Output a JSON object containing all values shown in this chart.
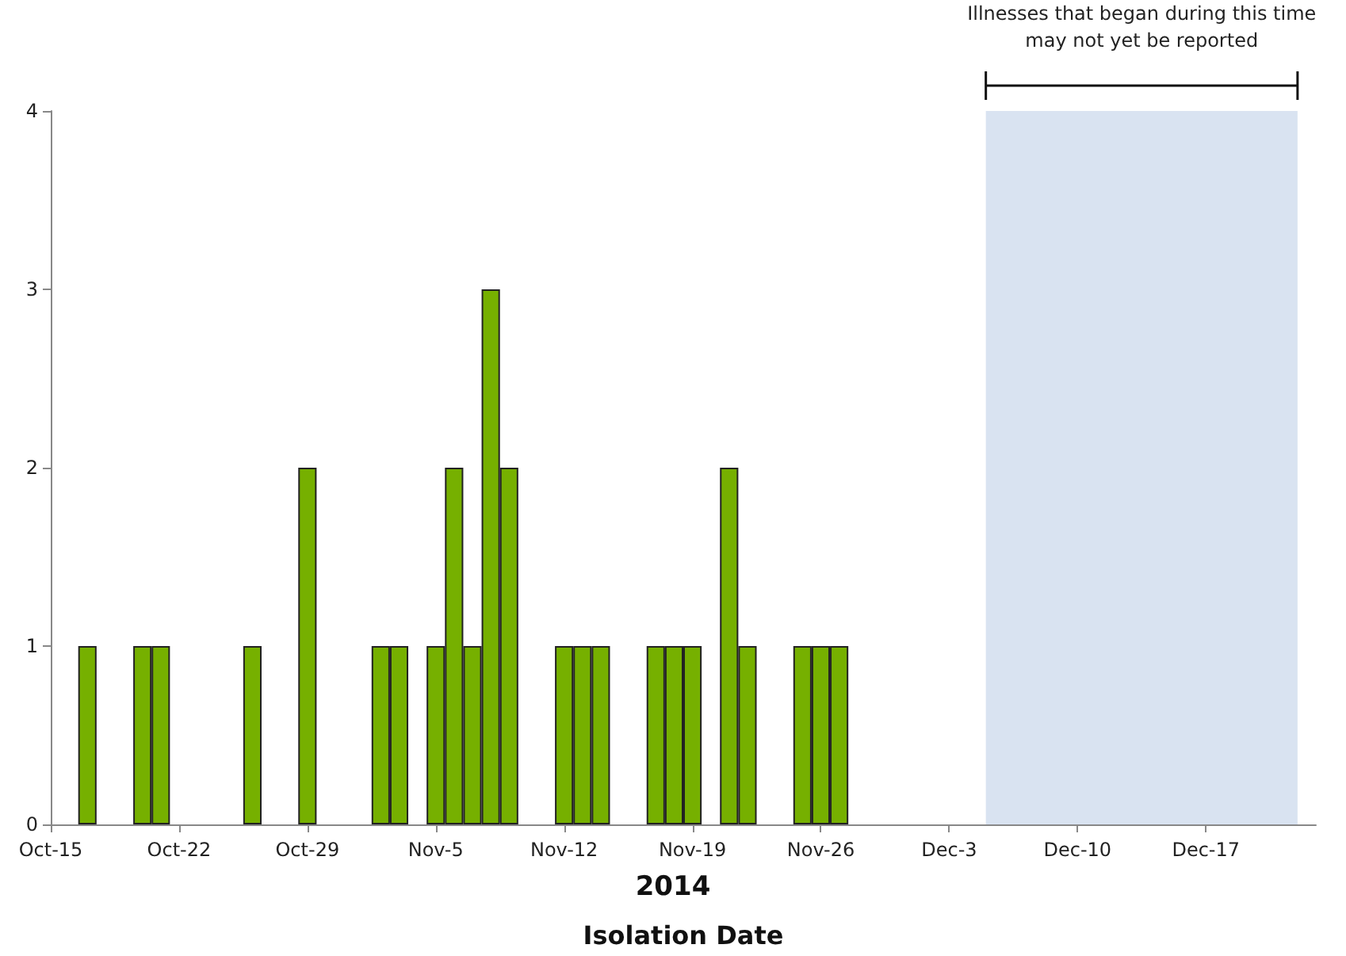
{
  "chart_data": {
    "type": "bar",
    "subtitle": "2014",
    "xlabel": "Isolation Date",
    "x": [
      "2014-10-17",
      "2014-10-20",
      "2014-10-21",
      "2014-10-26",
      "2014-10-29",
      "2014-11-02",
      "2014-11-03",
      "2014-11-05",
      "2014-11-06",
      "2014-11-07",
      "2014-11-08",
      "2014-11-09",
      "2014-11-12",
      "2014-11-13",
      "2014-11-14",
      "2014-11-17",
      "2014-11-18",
      "2014-11-19",
      "2014-11-21",
      "2014-11-22",
      "2014-11-25",
      "2014-11-26",
      "2014-11-27"
    ],
    "values": [
      1,
      1,
      1,
      1,
      2,
      1,
      1,
      1,
      2,
      1,
      3,
      2,
      1,
      1,
      1,
      1,
      1,
      1,
      2,
      1,
      1,
      1,
      1
    ],
    "color": "#76b000",
    "xlim": [
      "2014-10-15",
      "2014-12-23"
    ],
    "xticks": [
      {
        "value": "2014-10-15",
        "label": "Oct-15"
      },
      {
        "value": "2014-10-22",
        "label": "Oct-22"
      },
      {
        "value": "2014-10-29",
        "label": "Oct-29"
      },
      {
        "value": "2014-11-05",
        "label": "Nov-5"
      },
      {
        "value": "2014-11-12",
        "label": "Nov-12"
      },
      {
        "value": "2014-11-19",
        "label": "Nov-19"
      },
      {
        "value": "2014-11-26",
        "label": "Nov-26"
      },
      {
        "value": "2014-12-03",
        "label": "Dec-3"
      },
      {
        "value": "2014-12-10",
        "label": "Dec-10"
      },
      {
        "value": "2014-12-17",
        "label": "Dec-17"
      }
    ],
    "ylim": [
      0,
      4
    ],
    "yticks": [
      0,
      1,
      2,
      3,
      4
    ],
    "bands": [
      {
        "axis": "x",
        "from": "2014-12-05",
        "to": "2014-12-22",
        "label": "Illnesses that began during this time\nmay not yet be reported",
        "color": "#d9e3f1"
      }
    ]
  }
}
